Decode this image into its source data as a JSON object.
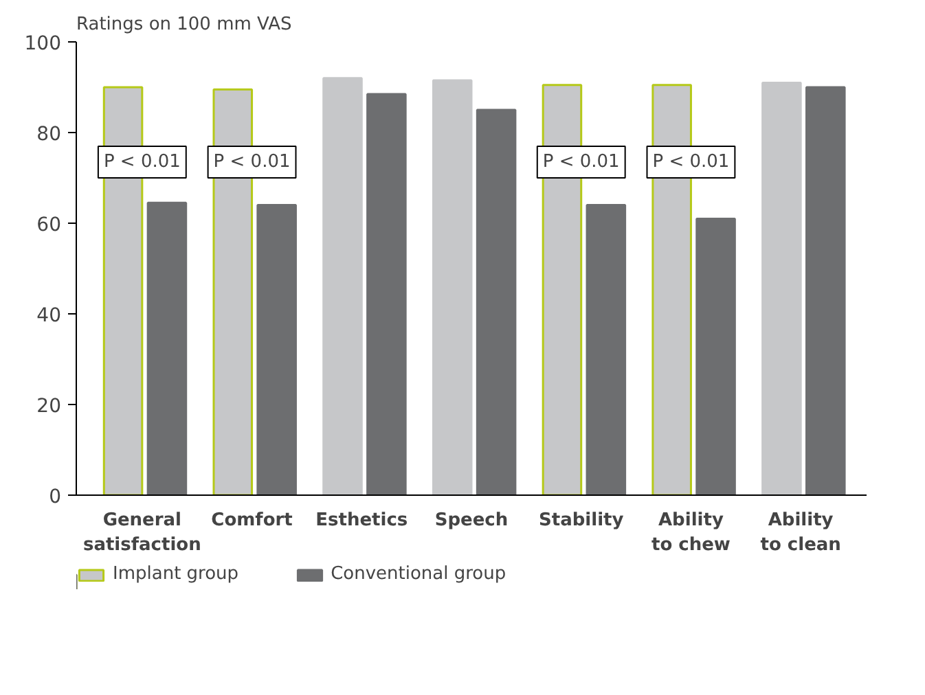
{
  "chart_data": {
    "type": "bar",
    "ylabel": "Ratings on 100 mm VAS",
    "categories": [
      "General\nsatisfaction",
      "Comfort",
      "Esthetics",
      "Speech",
      "Stability",
      "Ability\nto chew",
      "Ability\nto clean"
    ],
    "series": [
      {
        "name": "Implant group",
        "color": "#c6c7c9",
        "values": [
          90,
          89.5,
          92,
          91.5,
          90.5,
          90.5,
          91
        ]
      },
      {
        "name": "Conventional group",
        "color": "#6d6e70",
        "values": [
          64.5,
          64,
          88.5,
          85,
          64,
          61,
          90
        ]
      }
    ],
    "ylim": [
      0,
      100
    ],
    "yticks": [
      0,
      20,
      40,
      60,
      80,
      100
    ],
    "grid": false,
    "legend": "bottom",
    "annotations": [
      {
        "text": "P < 0.01",
        "x": "General\nsatisfaction",
        "y": 73.5
      },
      {
        "text": "P < 0.01",
        "x": "Comfort",
        "y": 73.5
      },
      {
        "text": "P < 0.01",
        "x": "Stability",
        "y": 73.5
      },
      {
        "text": "P < 0.01",
        "x": "Ability\nto chew",
        "y": 73.5
      }
    ]
  }
}
